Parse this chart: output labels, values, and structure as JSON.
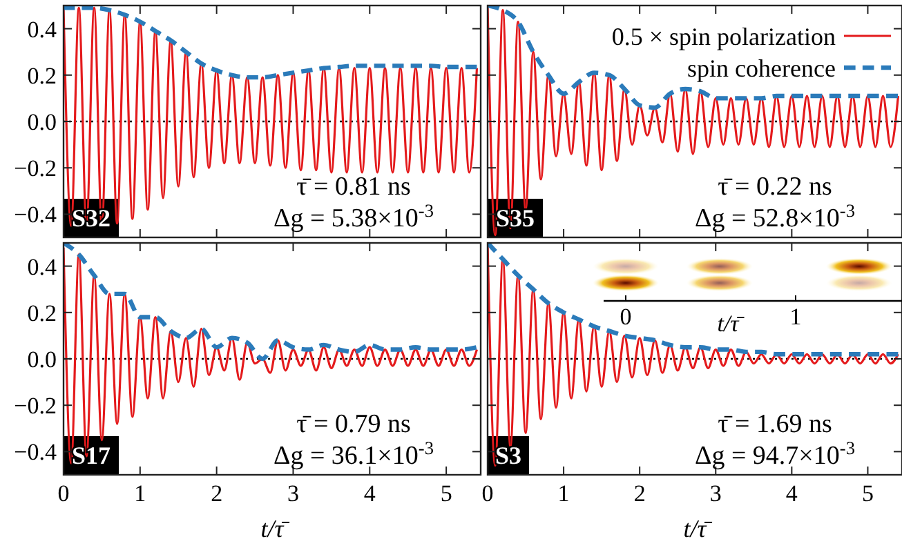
{
  "chart_data": [
    {
      "type": "line",
      "xlim": [
        0,
        5.45
      ],
      "ylim": [
        -0.5,
        0.5
      ],
      "xticks": [
        0,
        1,
        2,
        3,
        4,
        5
      ],
      "yticks": [
        {
          "value": -0.4,
          "label": "−0.4"
        },
        {
          "value": -0.2,
          "label": "−0.2"
        },
        {
          "value": 0,
          "label": "0.0"
        },
        {
          "value": 0.2,
          "label": "0.2"
        },
        {
          "value": 0.4,
          "label": "0.4"
        }
      ],
      "tick_labels": "y",
      "x": [
        0,
        0.1,
        0.2,
        0.3,
        0.4,
        0.5,
        0.6,
        0.7,
        0.8,
        0.9,
        1,
        1.1,
        1.2,
        1.3,
        1.4,
        1.5,
        1.6,
        1.7,
        1.8,
        1.9,
        2,
        2.1,
        2.2,
        2.3,
        2.4,
        2.5,
        2.6,
        2.7,
        2.8,
        2.9,
        3,
        3.1,
        3.2,
        3.3,
        3.4,
        3.5,
        3.6,
        3.7,
        3.8,
        3.9,
        4,
        4.1,
        4.2,
        4.3,
        4.4,
        4.5,
        4.6,
        4.7,
        4.8,
        4.9,
        5,
        5.1,
        5.2,
        5.3,
        5.4
      ],
      "series": [
        {
          "color": "#e41a1c",
          "line_style": "solid",
          "values": [
            0.49,
            -0.45,
            0.49,
            -0.45,
            0.49,
            -0.45,
            0.48,
            -0.44,
            0.46,
            -0.42,
            0.43,
            -0.38,
            0.39,
            -0.33,
            0.35,
            -0.28,
            0.3,
            -0.24,
            0.25,
            -0.2,
            0.22,
            -0.18,
            0.2,
            -0.18,
            0.19,
            -0.18,
            0.19,
            -0.19,
            0.2,
            -0.2,
            0.21,
            -0.21,
            0.22,
            -0.21,
            0.23,
            -0.22,
            0.23,
            -0.22,
            0.23,
            -0.22,
            0.23,
            -0.22,
            0.23,
            -0.22,
            0.23,
            -0.22,
            0.23,
            -0.22,
            0.23,
            -0.22,
            0.23,
            -0.22,
            0.23,
            -0.22,
            0.23
          ]
        },
        {
          "color": "#2b7bba",
          "line_style": "dashed",
          "x": [
            0,
            0.2,
            0.4,
            0.6,
            0.8,
            1,
            1.2,
            1.4,
            1.6,
            1.8,
            2,
            2.2,
            2.4,
            2.6,
            2.8,
            3,
            3.2,
            3.4,
            3.6,
            3.8,
            4,
            4.2,
            4.4,
            4.6,
            4.8,
            5,
            5.2,
            5.4
          ],
          "values": [
            0.49,
            0.49,
            0.49,
            0.48,
            0.46,
            0.43,
            0.39,
            0.35,
            0.3,
            0.25,
            0.22,
            0.2,
            0.19,
            0.19,
            0.2,
            0.21,
            0.22,
            0.23,
            0.235,
            0.24,
            0.24,
            0.24,
            0.24,
            0.24,
            0.24,
            0.235,
            0.235,
            0.235
          ]
        }
      ],
      "ref_lines": [
        {
          "axis": "y",
          "value": 0,
          "color": "#000000",
          "line_style": "dotted"
        }
      ],
      "annotations": [
        "S32",
        "τ̄ = 0.81 ns",
        "Δg = 5.38×10$^{-3}$"
      ]
    },
    {
      "type": "line",
      "xlim": [
        0,
        5.45
      ],
      "ylim": [
        -0.5,
        0.5
      ],
      "xticks": [
        0,
        1,
        2,
        3,
        4,
        5
      ],
      "yticks": [
        {
          "value": -0.4,
          "label": null
        },
        {
          "value": -0.2,
          "label": null
        },
        {
          "value": 0,
          "label": null
        },
        {
          "value": 0.2,
          "label": null
        },
        {
          "value": 0.4,
          "label": null
        }
      ],
      "tick_labels": false,
      "legend": "top right",
      "x": [
        0,
        0.1,
        0.2,
        0.3,
        0.4,
        0.5,
        0.6,
        0.7,
        0.8,
        0.9,
        1,
        1.1,
        1.2,
        1.3,
        1.4,
        1.5,
        1.6,
        1.7,
        1.8,
        1.9,
        2,
        2.1,
        2.2,
        2.3,
        2.4,
        2.5,
        2.6,
        2.7,
        2.8,
        2.9,
        3,
        3.1,
        3.2,
        3.3,
        3.4,
        3.5,
        3.6,
        3.7,
        3.8,
        3.9,
        4,
        4.1,
        4.2,
        4.3,
        4.4,
        4.5,
        4.6,
        4.7,
        4.8,
        4.9,
        5,
        5.1,
        5.2,
        5.3,
        5.4
      ],
      "series": [
        {
          "name": "0.5 × spin polarization",
          "color": "#e41a1c",
          "line_style": "solid",
          "values": [
            0.5,
            -0.49,
            0.48,
            -0.46,
            0.43,
            -0.38,
            0.3,
            -0.25,
            0.2,
            -0.15,
            0.12,
            -0.14,
            0.17,
            -0.19,
            0.21,
            -0.21,
            0.2,
            -0.17,
            0.14,
            -0.1,
            0.07,
            -0.06,
            0.06,
            -0.09,
            0.12,
            -0.13,
            0.14,
            -0.14,
            0.13,
            -0.11,
            0.1,
            -0.1,
            0.1,
            -0.1,
            0.1,
            -0.1,
            0.1,
            -0.11,
            0.11,
            -0.11,
            0.11,
            -0.11,
            0.11,
            -0.11,
            0.11,
            -0.11,
            0.11,
            -0.11,
            0.11,
            -0.11,
            0.11,
            -0.11,
            0.11,
            -0.11,
            0.11
          ]
        },
        {
          "name": "spin coherence",
          "color": "#2b7bba",
          "line_style": "dashed",
          "x": [
            0,
            0.2,
            0.4,
            0.6,
            0.8,
            1,
            1.2,
            1.4,
            1.6,
            1.8,
            2,
            2.2,
            2.4,
            2.6,
            2.8,
            3,
            3.2,
            3.4,
            3.6,
            3.8,
            4,
            4.2,
            4.4,
            4.6,
            4.8,
            5,
            5.2,
            5.4
          ],
          "values": [
            0.5,
            0.48,
            0.43,
            0.3,
            0.2,
            0.12,
            0.17,
            0.21,
            0.2,
            0.14,
            0.07,
            0.06,
            0.12,
            0.14,
            0.13,
            0.1,
            0.1,
            0.1,
            0.1,
            0.11,
            0.11,
            0.11,
            0.11,
            0.11,
            0.11,
            0.11,
            0.11,
            0.11
          ]
        }
      ],
      "ref_lines": [
        {
          "axis": "y",
          "value": 0,
          "color": "#000000",
          "line_style": "dotted"
        }
      ],
      "annotations": [
        "S35",
        "τ̄ = 0.22 ns",
        "Δg = 52.8×10$^{-3}$"
      ]
    },
    {
      "type": "line",
      "xlim": [
        0,
        5.45
      ],
      "ylim": [
        -0.5,
        0.5
      ],
      "xticks": [
        0,
        1,
        2,
        3,
        4,
        5
      ],
      "yticks": [
        {
          "value": -0.4,
          "label": "−0.4"
        },
        {
          "value": -0.2,
          "label": "−0.2"
        },
        {
          "value": 0,
          "label": "0.0"
        },
        {
          "value": 0.2,
          "label": "0.2"
        },
        {
          "value": 0.4,
          "label": "0.4"
        }
      ],
      "xlabel": "t/τ̄",
      "x": [
        0,
        0.1,
        0.2,
        0.3,
        0.4,
        0.5,
        0.6,
        0.7,
        0.8,
        0.9,
        1,
        1.1,
        1.2,
        1.3,
        1.4,
        1.5,
        1.6,
        1.7,
        1.8,
        1.9,
        2,
        2.1,
        2.2,
        2.3,
        2.4,
        2.5,
        2.6,
        2.7,
        2.8,
        2.9,
        3,
        3.1,
        3.2,
        3.3,
        3.4,
        3.5,
        3.6,
        3.7,
        3.8,
        3.9,
        4,
        4.1,
        4.2,
        4.3,
        4.4,
        4.5,
        4.6,
        4.7,
        4.8,
        4.9,
        5,
        5.1,
        5.2,
        5.3,
        5.4
      ],
      "series": [
        {
          "color": "#e41a1c",
          "line_style": "solid",
          "values": [
            0.48,
            -0.45,
            0.45,
            -0.42,
            0.36,
            -0.35,
            0.28,
            -0.28,
            0.28,
            -0.25,
            0.18,
            -0.17,
            0.18,
            -0.17,
            0.12,
            -0.1,
            0.09,
            -0.12,
            0.13,
            -0.07,
            0.05,
            -0.05,
            0.09,
            -0.09,
            0.07,
            -0.02,
            0,
            -0.06,
            0.08,
            -0.05,
            0.04,
            -0.03,
            0.04,
            -0.05,
            0.05,
            -0.04,
            0.04,
            -0.03,
            0.04,
            -0.03,
            0.05,
            -0.03,
            0.04,
            -0.03,
            0.04,
            -0.03,
            0.04,
            -0.03,
            0.04,
            -0.03,
            0.04,
            -0.03,
            0.04,
            -0.03,
            0.04
          ]
        },
        {
          "color": "#2b7bba",
          "line_style": "dashed",
          "x": [
            0,
            0.2,
            0.4,
            0.6,
            0.8,
            1,
            1.2,
            1.4,
            1.6,
            1.8,
            2,
            2.2,
            2.4,
            2.6,
            2.8,
            3,
            3.2,
            3.4,
            3.6,
            3.8,
            4,
            4.2,
            4.4,
            4.6,
            4.8,
            5,
            5.2,
            5.4
          ],
          "values": [
            0.5,
            0.45,
            0.36,
            0.28,
            0.28,
            0.18,
            0.18,
            0.12,
            0.09,
            0.13,
            0.05,
            0.09,
            0.07,
            0,
            0.08,
            0.05,
            0.04,
            0.06,
            0.04,
            0.03,
            0.06,
            0.04,
            0.04,
            0.05,
            0.04,
            0.04,
            0.04,
            0.05
          ]
        }
      ],
      "ref_lines": [
        {
          "axis": "y",
          "value": 0,
          "color": "#000000",
          "line_style": "dotted"
        }
      ],
      "annotations": [
        "S17",
        "τ̄ = 0.79 ns",
        "Δg = 36.1×10$^{-3}$"
      ]
    },
    {
      "type": "line",
      "xlim": [
        0,
        5.45
      ],
      "ylim": [
        -0.5,
        0.5
      ],
      "xticks": [
        0,
        1,
        2,
        3,
        4,
        5
      ],
      "yticks": [
        {
          "value": -0.4,
          "label": null
        },
        {
          "value": -0.2,
          "label": null
        },
        {
          "value": 0,
          "label": null
        },
        {
          "value": 0.2,
          "label": null
        },
        {
          "value": 0.4,
          "label": null
        }
      ],
      "tick_labels": "x",
      "xlabel": "t/τ̄",
      "x": [
        0,
        0.1,
        0.2,
        0.3,
        0.4,
        0.5,
        0.6,
        0.7,
        0.8,
        0.9,
        1,
        1.1,
        1.2,
        1.3,
        1.4,
        1.5,
        1.6,
        1.7,
        1.8,
        1.9,
        2,
        2.1,
        2.2,
        2.3,
        2.4,
        2.5,
        2.6,
        2.7,
        2.8,
        2.9,
        3,
        3.1,
        3.2,
        3.3,
        3.4,
        3.5,
        3.6,
        3.7,
        3.8,
        3.9,
        4,
        4.1,
        4.2,
        4.3,
        4.4,
        4.5,
        4.6,
        4.7,
        4.8,
        4.9,
        5,
        5.1,
        5.2,
        5.3,
        5.4
      ],
      "series": [
        {
          "color": "#e41a1c",
          "line_style": "solid",
          "values": [
            0.5,
            -0.46,
            0.43,
            -0.38,
            0.36,
            -0.32,
            0.3,
            -0.26,
            0.24,
            -0.21,
            0.2,
            -0.17,
            0.17,
            -0.14,
            0.14,
            -0.12,
            0.12,
            -0.1,
            0.1,
            -0.08,
            0.09,
            -0.07,
            0.08,
            -0.06,
            0.06,
            -0.05,
            0.05,
            -0.04,
            0.05,
            -0.04,
            0.04,
            -0.03,
            0.04,
            -0.03,
            0.03,
            -0.02,
            0.02,
            -0.02,
            0.02,
            -0.02,
            0.02,
            -0.02,
            0.02,
            -0.02,
            0.02,
            -0.02,
            0.02,
            -0.02,
            0.02,
            -0.02,
            0.02,
            -0.02,
            0.02,
            -0.02,
            0.02
          ]
        },
        {
          "color": "#2b7bba",
          "line_style": "dashed",
          "x": [
            0,
            0.2,
            0.4,
            0.6,
            0.8,
            1,
            1.2,
            1.4,
            1.6,
            1.8,
            2,
            2.2,
            2.4,
            2.6,
            2.8,
            3,
            3.2,
            3.4,
            3.6,
            3.8,
            4,
            4.2,
            4.4,
            4.6,
            4.8,
            5,
            5.2,
            5.4
          ],
          "values": [
            0.5,
            0.43,
            0.36,
            0.3,
            0.24,
            0.2,
            0.17,
            0.14,
            0.12,
            0.1,
            0.09,
            0.08,
            0.06,
            0.05,
            0.05,
            0.04,
            0.04,
            0.03,
            0.03,
            0.02,
            0.02,
            0.02,
            0.02,
            0.02,
            0.02,
            0.02,
            0.02,
            0.02
          ]
        }
      ],
      "ref_lines": [
        {
          "axis": "y",
          "value": 0,
          "color": "#000000",
          "line_style": "dotted"
        }
      ],
      "annotations": [
        "S3",
        "τ̄ = 1.69 ns",
        "Δg = 94.7×10$^{-3}$",
        "0",
        "1",
        "t/τ̄"
      ]
    }
  ]
}
